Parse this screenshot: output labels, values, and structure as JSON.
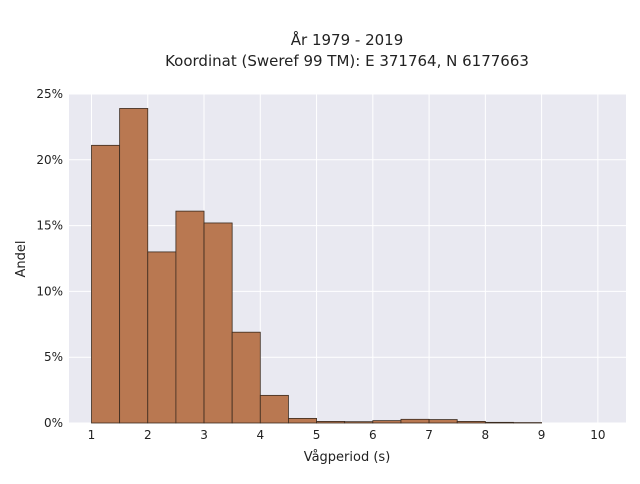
{
  "chart_data": {
    "type": "bar",
    "title": [
      "År 1979 - 2019",
      "Koordinat (Sweref 99 TM): E 371764, N 6177663"
    ],
    "xlabel": "Vågperiod (s)",
    "ylabel": "Andel",
    "xlim": [
      0.6,
      10.5
    ],
    "ylim": [
      0,
      25
    ],
    "grid": true,
    "bin_width": 0.5,
    "x_ticks": [
      1,
      2,
      3,
      4,
      5,
      6,
      7,
      8,
      9,
      10
    ],
    "y_ticks": [
      0,
      5,
      10,
      15,
      20,
      25
    ],
    "x_tick_labels": [
      "1",
      "2",
      "3",
      "4",
      "5",
      "6",
      "7",
      "8",
      "9",
      "10"
    ],
    "y_tick_labels": [
      "0%",
      "5%",
      "10%",
      "15%",
      "20%",
      "25%"
    ],
    "bins": [
      {
        "start": 1.0,
        "value": 21.1
      },
      {
        "start": 1.5,
        "value": 23.9
      },
      {
        "start": 2.0,
        "value": 13.0
      },
      {
        "start": 2.5,
        "value": 16.1
      },
      {
        "start": 3.0,
        "value": 15.2
      },
      {
        "start": 3.5,
        "value": 6.9
      },
      {
        "start": 4.0,
        "value": 2.1
      },
      {
        "start": 4.5,
        "value": 0.35
      },
      {
        "start": 5.0,
        "value": 0.12
      },
      {
        "start": 5.5,
        "value": 0.1
      },
      {
        "start": 6.0,
        "value": 0.18
      },
      {
        "start": 6.5,
        "value": 0.28
      },
      {
        "start": 7.0,
        "value": 0.26
      },
      {
        "start": 7.5,
        "value": 0.12
      },
      {
        "start": 8.0,
        "value": 0.05
      },
      {
        "start": 8.5,
        "value": 0.03
      }
    ],
    "colors": {
      "bar_fill": "#b97851",
      "bar_stroke": "#3a2a1e",
      "plot_background": "#e9e9f1",
      "grid": "#ffffff"
    }
  }
}
